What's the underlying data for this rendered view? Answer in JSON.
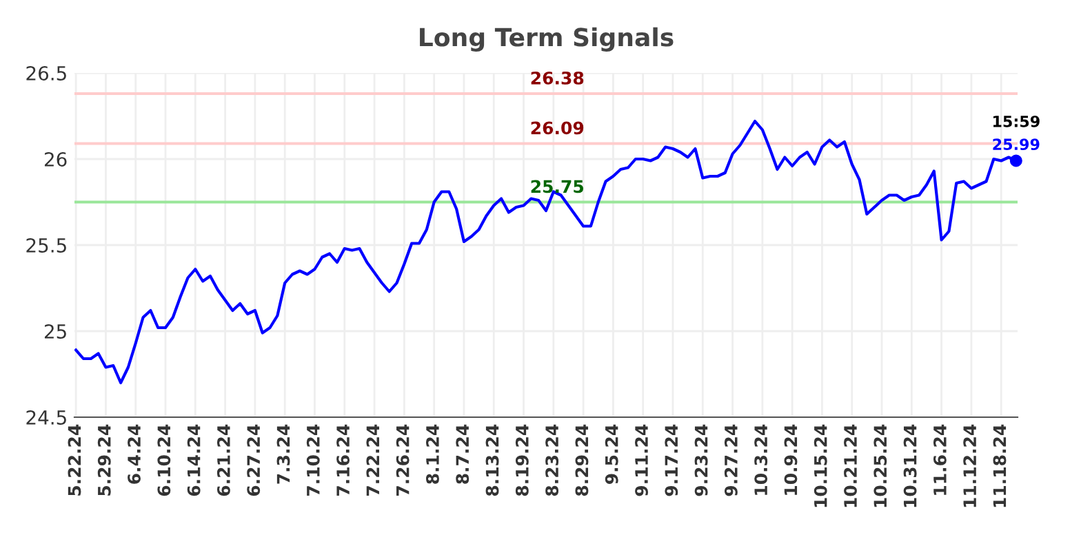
{
  "chart_data": {
    "type": "line",
    "title": "Long Term Signals",
    "categories": [
      "5.22.24",
      null,
      null,
      null,
      "5.29.24",
      null,
      null,
      null,
      "6.4.24",
      null,
      null,
      null,
      "6.10.24",
      null,
      null,
      null,
      "6.14.24",
      null,
      null,
      null,
      "6.21.24",
      null,
      null,
      null,
      "6.27.24",
      null,
      null,
      null,
      "7.3.24",
      null,
      null,
      null,
      "7.10.24",
      null,
      null,
      null,
      "7.16.24",
      null,
      null,
      null,
      "7.22.24",
      null,
      null,
      null,
      "7.26.24",
      null,
      null,
      null,
      "8.1.24",
      null,
      null,
      null,
      "8.7.24",
      null,
      null,
      null,
      "8.13.24",
      null,
      null,
      null,
      "8.19.24",
      null,
      null,
      null,
      "8.23.24",
      null,
      null,
      null,
      "8.29.24",
      null,
      null,
      null,
      "9.5.24",
      null,
      null,
      null,
      "9.11.24",
      null,
      null,
      null,
      "9.17.24",
      null,
      null,
      null,
      "9.23.24",
      null,
      null,
      null,
      "9.27.24",
      null,
      null,
      null,
      "10.3.24",
      null,
      null,
      null,
      "10.9.24",
      null,
      null,
      null,
      "10.15.24",
      null,
      null,
      null,
      "10.21.24",
      null,
      null,
      null,
      "10.25.24",
      null,
      null,
      null,
      "10.31.24",
      null,
      null,
      null,
      "11.6.24",
      null,
      null,
      null,
      "11.12.24",
      null,
      null,
      null,
      "11.18.24",
      null,
      null
    ],
    "series": [
      {
        "color": "#0000ff",
        "values": [
          24.89,
          24.84,
          24.84,
          24.87,
          24.79,
          24.8,
          24.7,
          24.79,
          24.93,
          25.08,
          25.12,
          25.02,
          25.02,
          25.08,
          25.2,
          25.31,
          25.36,
          25.29,
          25.32,
          25.24,
          25.18,
          25.12,
          25.16,
          25.1,
          25.12,
          24.99,
          25.02,
          25.09,
          25.28,
          25.33,
          25.35,
          25.33,
          25.36,
          25.43,
          25.45,
          25.4,
          25.48,
          25.47,
          25.48,
          25.4,
          25.34,
          25.28,
          25.23,
          25.28,
          25.39,
          25.51,
          25.51,
          25.59,
          25.75,
          25.81,
          25.81,
          25.71,
          25.52,
          25.55,
          25.59,
          25.67,
          25.73,
          25.77,
          25.69,
          25.72,
          25.73,
          25.77,
          25.76,
          25.7,
          25.81,
          25.79,
          25.73,
          25.67,
          25.61,
          25.61,
          25.75,
          25.87,
          25.9,
          25.94,
          25.95,
          26.0,
          26.0,
          25.99,
          26.01,
          26.07,
          26.06,
          26.04,
          26.01,
          26.06,
          25.89,
          25.9,
          25.9,
          25.92,
          26.03,
          26.08,
          26.15,
          26.22,
          26.17,
          26.06,
          25.94,
          26.01,
          25.96,
          26.01,
          26.04,
          25.97,
          26.07,
          26.11,
          26.07,
          26.1,
          25.97,
          25.88,
          25.68,
          25.72,
          25.76,
          25.79,
          25.79,
          25.76,
          25.78,
          25.79,
          25.85,
          25.93,
          25.53,
          25.58,
          25.86,
          25.87,
          25.83,
          25.85,
          25.87,
          26.0,
          25.99,
          26.01,
          25.99
        ]
      },
      {
        "type": "scatter",
        "color": "#0000ff",
        "values": [
          null,
          null,
          null,
          null,
          null,
          null,
          null,
          null,
          null,
          null,
          null,
          null,
          null,
          null,
          null,
          null,
          null,
          null,
          null,
          null,
          null,
          null,
          null,
          null,
          null,
          null,
          null,
          null,
          null,
          null,
          null,
          null,
          null,
          null,
          null,
          null,
          null,
          null,
          null,
          null,
          null,
          null,
          null,
          null,
          null,
          null,
          null,
          null,
          null,
          null,
          null,
          null,
          null,
          null,
          null,
          null,
          null,
          null,
          null,
          null,
          null,
          null,
          null,
          null,
          null,
          null,
          null,
          null,
          null,
          null,
          null,
          null,
          null,
          null,
          null,
          null,
          null,
          null,
          null,
          null,
          null,
          null,
          null,
          null,
          null,
          null,
          null,
          null,
          null,
          null,
          null,
          null,
          null,
          null,
          null,
          null,
          null,
          null,
          null,
          null,
          null,
          null,
          null,
          null,
          null,
          null,
          null,
          null,
          null,
          null,
          null,
          null,
          null,
          null,
          null,
          null,
          null,
          null,
          null,
          null,
          null,
          null,
          null,
          null,
          null,
          null,
          25.99
        ],
        "value_labels": [
          null,
          null,
          null,
          null,
          null,
          null,
          null,
          null,
          null,
          null,
          null,
          null,
          null,
          null,
          null,
          null,
          null,
          null,
          null,
          null,
          null,
          null,
          null,
          null,
          null,
          null,
          null,
          null,
          null,
          null,
          null,
          null,
          null,
          null,
          null,
          null,
          null,
          null,
          null,
          null,
          null,
          null,
          null,
          null,
          null,
          null,
          null,
          null,
          null,
          null,
          null,
          null,
          null,
          null,
          null,
          null,
          null,
          null,
          null,
          null,
          null,
          null,
          null,
          null,
          null,
          null,
          null,
          null,
          null,
          null,
          null,
          null,
          null,
          null,
          null,
          null,
          null,
          null,
          null,
          null,
          null,
          null,
          null,
          null,
          null,
          null,
          null,
          null,
          null,
          null,
          null,
          null,
          null,
          null,
          null,
          null,
          null,
          null,
          null,
          null,
          null,
          null,
          null,
          null,
          null,
          null,
          null,
          null,
          null,
          null,
          null,
          null,
          null,
          null,
          null,
          null,
          null,
          null,
          null,
          null,
          null,
          null,
          null,
          null,
          null,
          null,
          "25.99"
        ]
      }
    ],
    "ylim": [
      24.5,
      26.5
    ],
    "yticks": [
      24.5,
      25,
      25.5,
      26,
      26.5
    ],
    "grid": true,
    "ref_lines": [
      {
        "axis": "y",
        "value": 26.38,
        "label": "26.38",
        "color": "#ffcccc"
      },
      {
        "axis": "y",
        "value": 26.09,
        "label": "26.09",
        "color": "#ffcccc"
      },
      {
        "axis": "y",
        "value": 25.75,
        "label": "25.75",
        "color": "#99e699"
      }
    ],
    "annotations": [
      "15:59"
    ]
  }
}
